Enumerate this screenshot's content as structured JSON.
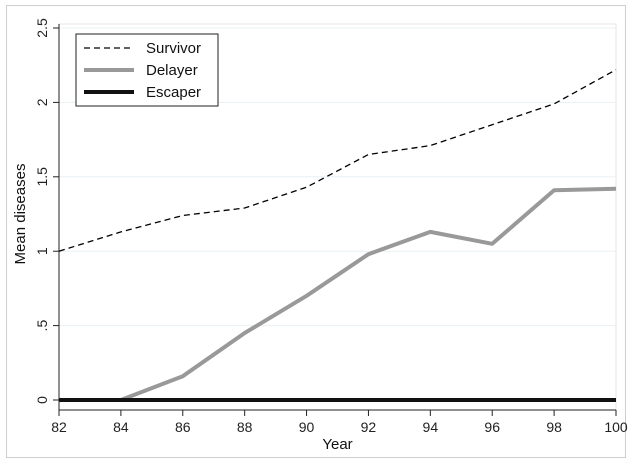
{
  "chart_data": {
    "type": "line",
    "xlabel": "Year",
    "ylabel": "Mean diseases",
    "x": [
      82,
      84,
      86,
      88,
      90,
      92,
      94,
      96,
      98,
      100
    ],
    "xticks": [
      "82",
      "84",
      "86",
      "88",
      "90",
      "92",
      "94",
      "96",
      "98",
      "100"
    ],
    "yticks": [
      {
        "value": 0,
        "label": "0"
      },
      {
        "value": 0.5,
        "label": ".5"
      },
      {
        "value": 1,
        "label": "1"
      },
      {
        "value": 1.5,
        "label": "1.5"
      },
      {
        "value": 2,
        "label": "2"
      },
      {
        "value": 2.5,
        "label": "2.5"
      }
    ],
    "xlim": [
      82,
      100
    ],
    "ylim": [
      0,
      2.5
    ],
    "grid": "horizontal",
    "legend_position": "top-left",
    "series": [
      {
        "name": "Survivor",
        "style": "dashed",
        "color": "#000000",
        "x": [
          82,
          84,
          86,
          88,
          90,
          92,
          94,
          96,
          98,
          100
        ],
        "values": [
          1.0,
          1.13,
          1.24,
          1.29,
          1.43,
          1.65,
          1.71,
          1.85,
          1.99,
          2.22
        ]
      },
      {
        "name": "Delayer",
        "style": "solid-thick",
        "color": "#999999",
        "x": [
          84,
          86,
          88,
          90,
          92,
          94,
          96,
          98,
          100
        ],
        "values": [
          0.0,
          0.16,
          0.45,
          0.7,
          0.98,
          1.13,
          1.05,
          1.41,
          1.42
        ]
      },
      {
        "name": "Escaper",
        "style": "solid-thick",
        "color": "#111111",
        "x": [
          82,
          84,
          86,
          88,
          90,
          92,
          94,
          96,
          98,
          100
        ],
        "values": [
          0,
          0,
          0,
          0,
          0,
          0,
          0,
          0,
          0,
          0
        ]
      }
    ]
  }
}
